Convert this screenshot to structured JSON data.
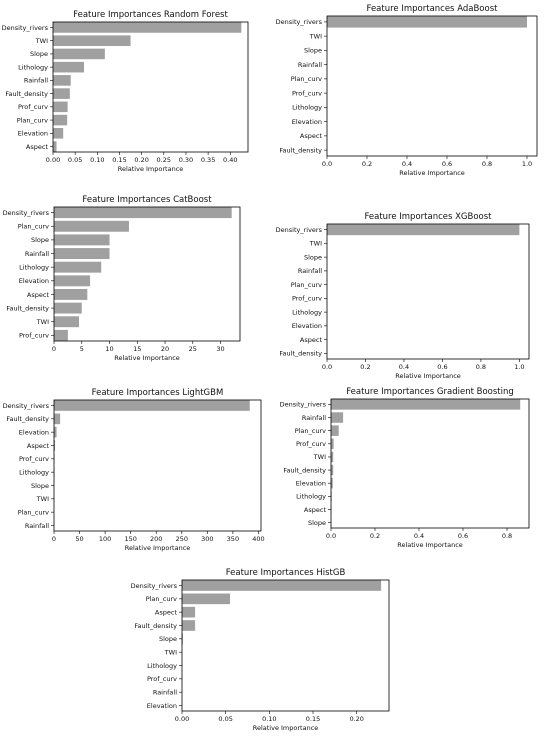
{
  "bar_color": "#a0a0a0",
  "chart_data": [
    {
      "type": "bar",
      "orientation": "horizontal",
      "title": "Feature Importances Random Forest",
      "xlabel": "Relative Importance",
      "categories": [
        "Density_rivers",
        "TWI",
        "Slope",
        "Lithology",
        "Rainfall",
        "Fault_density",
        "Prof_curv",
        "Plan_curv",
        "Elevation",
        "Aspect"
      ],
      "values": [
        0.425,
        0.175,
        0.117,
        0.07,
        0.04,
        0.038,
        0.033,
        0.032,
        0.023,
        0.008
      ],
      "xlim": [
        0,
        0.44
      ],
      "ticks": [
        0,
        0.05,
        0.1,
        0.15,
        0.2,
        0.25,
        0.3,
        0.35,
        0.4
      ],
      "tick_labels": [
        "0.00",
        "0.05",
        "0.10",
        "0.15",
        "0.20",
        "0.25",
        "0.30",
        "0.35",
        "0.40"
      ]
    },
    {
      "type": "bar",
      "orientation": "horizontal",
      "title": "Feature Importances AdaBoost",
      "xlabel": "Relative Importance",
      "categories": [
        "Density_rivers",
        "TWI",
        "Slope",
        "Rainfall",
        "Plan_curv",
        "Prof_curv",
        "Lithology",
        "Elevation",
        "Aspect",
        "Fault_density"
      ],
      "values": [
        1.0,
        0,
        0,
        0,
        0,
        0,
        0,
        0,
        0,
        0
      ],
      "xlim": [
        0,
        1.05
      ],
      "ticks": [
        0,
        0.2,
        0.4,
        0.6,
        0.8,
        1.0
      ],
      "tick_labels": [
        "0.0",
        "0.2",
        "0.4",
        "0.6",
        "0.8",
        "1.0"
      ]
    },
    {
      "type": "bar",
      "orientation": "horizontal",
      "title": "Feature Importances CatBoost",
      "xlabel": "Relative Importance",
      "categories": [
        "Density_rivers",
        "Plan_curv",
        "Slope",
        "Rainfall",
        "Lithology",
        "Elevation",
        "Aspect",
        "Fault_density",
        "TWI",
        "Prof_curv"
      ],
      "values": [
        32,
        13.5,
        10,
        10,
        8.5,
        6.5,
        6,
        5,
        4.5,
        2.5
      ],
      "xlim": [
        0,
        33.5
      ],
      "ticks": [
        0,
        5,
        10,
        15,
        20,
        25,
        30
      ],
      "tick_labels": [
        "0",
        "5",
        "10",
        "15",
        "20",
        "25",
        "30"
      ]
    },
    {
      "type": "bar",
      "orientation": "horizontal",
      "title": "Feature Importances XGBoost",
      "xlabel": "Relative Importance",
      "categories": [
        "Density_rivers",
        "TWI",
        "Slope",
        "Rainfall",
        "Plan_curv",
        "Prof_curv",
        "Lithology",
        "Elevation",
        "Aspect",
        "Fault_density"
      ],
      "values": [
        1.0,
        0,
        0,
        0,
        0,
        0,
        0,
        0,
        0,
        0
      ],
      "xlim": [
        0,
        1.05
      ],
      "ticks": [
        0,
        0.2,
        0.4,
        0.6,
        0.8,
        1.0
      ],
      "tick_labels": [
        "0.0",
        "0.2",
        "0.4",
        "0.6",
        "0.8",
        "1.0"
      ]
    },
    {
      "type": "bar",
      "orientation": "horizontal",
      "title": "Feature Importances LightGBM",
      "xlabel": "Relative Importance",
      "categories": [
        "Density_rivers",
        "Fault_density",
        "Elevation",
        "Aspect",
        "Prof_curv",
        "Lithology",
        "Slope",
        "TWI",
        "Plan_curv",
        "Rainfall"
      ],
      "values": [
        383,
        12,
        5,
        2,
        1,
        1,
        0,
        0,
        0,
        0
      ],
      "xlim": [
        0,
        405
      ],
      "ticks": [
        0,
        50,
        100,
        150,
        200,
        250,
        300,
        350,
        400
      ],
      "tick_labels": [
        "0",
        "50",
        "100",
        "150",
        "200",
        "250",
        "300",
        "350",
        "400"
      ]
    },
    {
      "type": "bar",
      "orientation": "horizontal",
      "title": "Feature Importances Gradient Boosting",
      "xlabel": "Relative Importance",
      "categories": [
        "Density_rivers",
        "Rainfall",
        "Plan_curv",
        "Prof_curv",
        "TWI",
        "Fault_density",
        "Elevation",
        "Lithology",
        "Aspect",
        "Slope"
      ],
      "values": [
        0.86,
        0.055,
        0.035,
        0.012,
        0.01,
        0.01,
        0.008,
        0.003,
        0.002,
        0.001
      ],
      "xlim": [
        0,
        0.9
      ],
      "ticks": [
        0,
        0.2,
        0.4,
        0.6,
        0.8
      ],
      "tick_labels": [
        "0.0",
        "0.2",
        "0.4",
        "0.6",
        "0.8"
      ]
    },
    {
      "type": "bar",
      "orientation": "horizontal",
      "title": "Feature Importances HistGB",
      "xlabel": "Relative Importance",
      "categories": [
        "Density_rivers",
        "Plan_curv",
        "Aspect",
        "Fault_density",
        "Slope",
        "TWI",
        "Lithology",
        "Prof_curv",
        "Rainfall",
        "Elevation"
      ],
      "values": [
        0.228,
        0.055,
        0.015,
        0.015,
        0.001,
        0,
        0,
        0,
        0,
        0
      ],
      "xlim": [
        0,
        0.237
      ],
      "ticks": [
        0,
        0.05,
        0.1,
        0.15,
        0.2
      ],
      "tick_labels": [
        "0.00",
        "0.05",
        "0.10",
        "0.15",
        "0.20"
      ]
    }
  ]
}
